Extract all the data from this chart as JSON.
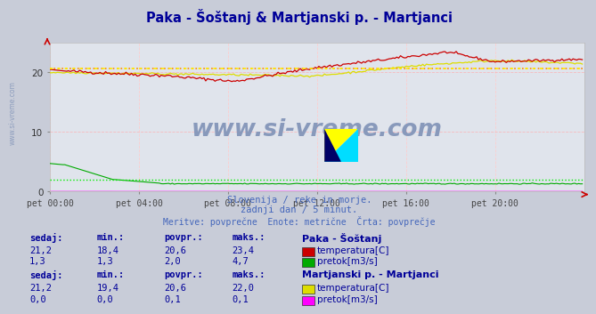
{
  "title": "Paka - Šoštanj & Martjanski p. - Martjanci",
  "title_color": "#000099",
  "bg_color": "#c8ccd8",
  "plot_bg_color": "#e0e4ec",
  "grid_color": "#ffaaaa",
  "grid_vcolor": "#ffcccc",
  "subtitle_lines": [
    "Slovenija / reke in morje.",
    "zadnji dan / 5 minut.",
    "Meritve: povprečne  Enote: metrične  Črta: povprečje"
  ],
  "subtitle_color": "#4466bb",
  "x_ticks": [
    "pet 00:00",
    "pet 04:00",
    "pet 08:00",
    "pet 12:00",
    "pet 16:00",
    "pet 20:00"
  ],
  "x_tick_positions": [
    0,
    48,
    96,
    144,
    192,
    240
  ],
  "x_max": 288,
  "y_ticks": [
    0,
    10,
    20
  ],
  "y_max": 25,
  "watermark": "www.si-vreme.com",
  "watermark_color": "#8899bb",
  "paka_temp_color": "#cc0000",
  "paka_pretok_color": "#00aa00",
  "martjanci_temp_color": "#dddd00",
  "martjanci_pretok_color": "#ff00ff",
  "avg_line_color_paka_temp": "#ff8800",
  "avg_line_color_martjanci_temp": "#ffee00",
  "avg_line_color_paka_pretok": "#00ee00",
  "paka_temp_avg": 20.6,
  "paka_pretok_avg": 2.0,
  "martjanci_temp_avg": 20.6,
  "martjanci_pretok_avg": 0.1,
  "legend": {
    "section1_title": "Paka - Šoštanj",
    "section2_title": "Martjanski p. - Martjanci",
    "title_color": "#000099",
    "header_color": "#000099",
    "value_color": "#000099",
    "headers": [
      "sedaj:",
      "min.:",
      "povpr.:",
      "maks.:"
    ],
    "paka_temp": {
      "sedaj": "21,2",
      "min": "18,4",
      "povpr": "20,6",
      "maks": "23,4",
      "label": "temperatura[C]",
      "color": "#cc0000"
    },
    "paka_pretok": {
      "sedaj": "1,3",
      "min": "1,3",
      "povpr": "2,0",
      "maks": "4,7",
      "label": "pretok[m3/s]",
      "color": "#00aa00"
    },
    "mart_temp": {
      "sedaj": "21,2",
      "min": "19,4",
      "povpr": "20,6",
      "maks": "22,0",
      "label": "temperatura[C]",
      "color": "#dddd00"
    },
    "mart_pretok": {
      "sedaj": "0,0",
      "min": "0,0",
      "povpr": "0,1",
      "maks": "0,1",
      "label": "pretok[m3/s]",
      "color": "#ff00ff"
    }
  },
  "side_watermark": "www.si-vreme.com",
  "side_watermark_color": "#8899bb"
}
